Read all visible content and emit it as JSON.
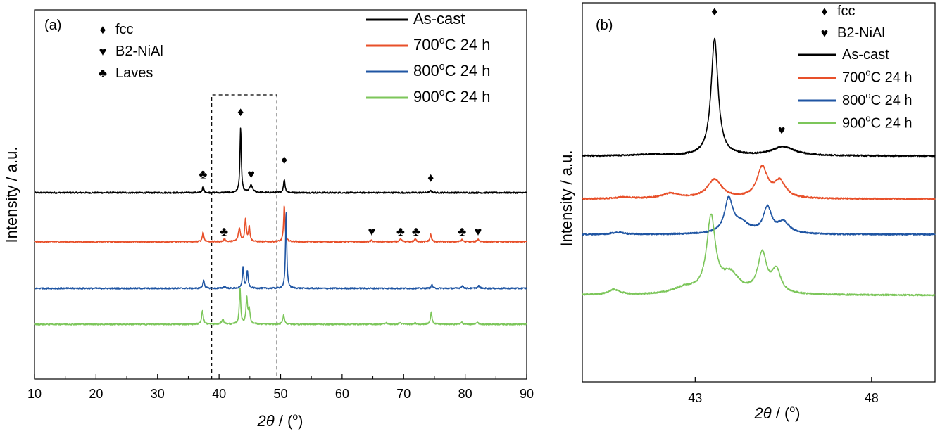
{
  "colors": {
    "As-cast": "#000000",
    "700oC 24 h": "#E8502A",
    "800oC 24 h": "#1F55A3",
    "900oC 24 h": "#7CC65A"
  },
  "symbols": {
    "fcc": "♦",
    "B2-NiAl": "♥",
    "Laves": "♣"
  },
  "chart_data": [
    {
      "panel_label": "(a)",
      "type": "line",
      "xlabel": "2θ / (°)",
      "xlabel_parts": {
        "italic": "2θ",
        "rest": " / (",
        "deg": "o",
        "close": ")"
      },
      "ylabel": "Intensity / a.u.",
      "xlim": [
        10,
        90
      ],
      "x_ticks": [
        10,
        20,
        30,
        40,
        50,
        60,
        70,
        80,
        90
      ],
      "y_ticks": "none (arbitrary units, curves vertically offset)",
      "phase_legend": [
        {
          "symbol": "♦",
          "label": "fcc"
        },
        {
          "symbol": "♥",
          "label": "B2-NiAl"
        },
        {
          "symbol": "♣",
          "label": "Laves"
        }
      ],
      "series_legend": [
        {
          "name": "As-cast",
          "base": "As-cast",
          "sup": "",
          "tail": ""
        },
        {
          "name": "700oC 24 h",
          "base": "700",
          "sup": "o",
          "tail": "C 24 h"
        },
        {
          "name": "800oC 24 h",
          "base": "800",
          "sup": "o",
          "tail": "C 24 h"
        },
        {
          "name": "900oC 24 h",
          "base": "900",
          "sup": "o",
          "tail": "C 24 h"
        }
      ],
      "zoom_box_x": [
        38.8,
        49.4
      ],
      "series": [
        {
          "name": "As-cast",
          "offset": 6.0,
          "peaks": [
            [
              37.4,
              0.25,
              0.15
            ],
            [
              43.5,
              2.7,
              0.13
            ],
            [
              45.2,
              0.3,
              0.3
            ],
            [
              50.6,
              0.55,
              0.15
            ],
            [
              74.4,
              0.08,
              0.2
            ]
          ]
        },
        {
          "name": "700oC 24 h",
          "offset": 3.95,
          "peaks": [
            [
              37.4,
              0.4,
              0.15
            ],
            [
              40.9,
              0.1,
              0.2
            ],
            [
              43.3,
              0.55,
              0.2
            ],
            [
              44.3,
              0.95,
              0.15
            ],
            [
              44.9,
              0.6,
              0.15
            ],
            [
              50.6,
              1.55,
              0.13
            ],
            [
              64.8,
              0.05,
              0.2
            ],
            [
              69.5,
              0.1,
              0.2
            ],
            [
              71.9,
              0.1,
              0.2
            ],
            [
              74.4,
              0.3,
              0.15
            ],
            [
              79.5,
              0.08,
              0.2
            ],
            [
              82.1,
              0.1,
              0.2
            ]
          ]
        },
        {
          "name": "800oC 24 h",
          "offset": 2.0,
          "peaks": [
            [
              37.5,
              0.35,
              0.15
            ],
            [
              40.9,
              0.08,
              0.2
            ],
            [
              43.9,
              0.9,
              0.13
            ],
            [
              44.6,
              0.7,
              0.15
            ],
            [
              50.9,
              3.2,
              0.12
            ],
            [
              74.6,
              0.15,
              0.15
            ],
            [
              79.5,
              0.1,
              0.2
            ],
            [
              82.2,
              0.1,
              0.2
            ]
          ]
        },
        {
          "name": "900oC 24 h",
          "offset": 0.5,
          "peaks": [
            [
              37.3,
              0.6,
              0.15
            ],
            [
              40.6,
              0.2,
              0.2
            ],
            [
              43.4,
              1.55,
              0.13
            ],
            [
              44.5,
              1.1,
              0.15
            ],
            [
              44.9,
              0.6,
              0.15
            ],
            [
              50.5,
              0.4,
              0.15
            ],
            [
              67.2,
              0.06,
              0.2
            ],
            [
              69.4,
              0.06,
              0.2
            ],
            [
              71.9,
              0.05,
              0.2
            ],
            [
              74.5,
              0.5,
              0.15
            ],
            [
              79.4,
              0.08,
              0.2
            ],
            [
              82.0,
              0.08,
              0.2
            ]
          ]
        }
      ],
      "annotations": [
        {
          "symbol": "♦",
          "x": 43.5,
          "level": 9.2
        },
        {
          "symbol": "♣",
          "x": 37.4,
          "level": 6.6
        },
        {
          "symbol": "♥",
          "x": 45.2,
          "level": 6.6
        },
        {
          "symbol": "♦",
          "x": 50.6,
          "level": 7.2
        },
        {
          "symbol": "♦",
          "x": 74.4,
          "level": 6.45
        },
        {
          "symbol": "♣",
          "x": 40.8,
          "level": 4.2
        },
        {
          "symbol": "♥",
          "x": 64.8,
          "level": 4.2
        },
        {
          "symbol": "♣",
          "x": 69.5,
          "level": 4.2
        },
        {
          "symbol": "♣",
          "x": 72.0,
          "level": 4.2
        },
        {
          "symbol": "♣",
          "x": 79.5,
          "level": 4.2
        },
        {
          "symbol": "♥",
          "x": 82.1,
          "level": 4.2
        }
      ]
    },
    {
      "panel_label": "(b)",
      "type": "line",
      "xlabel": "2θ / (°)",
      "xlabel_parts": {
        "italic": "2θ",
        "rest": " / (",
        "deg": "o",
        "close": ")"
      },
      "ylabel": "Intensity / a.u.",
      "xlim": [
        39.8,
        49.8
      ],
      "x_ticks": [
        43,
        48
      ],
      "phase_legend": [
        {
          "symbol": "♦",
          "label": "fcc"
        },
        {
          "symbol": "♥",
          "label": "B2-NiAl"
        }
      ],
      "series_legend": [
        {
          "name": "As-cast",
          "base": "As-cast",
          "sup": "",
          "tail": ""
        },
        {
          "name": "700oC 24 h",
          "base": "700",
          "sup": "o",
          "tail": "C 24 h"
        },
        {
          "name": "800oC 24 h",
          "base": "800",
          "sup": "o",
          "tail": "C 24 h"
        },
        {
          "name": "900oC 24 h",
          "base": "900",
          "sup": "o",
          "tail": "C 24 h"
        }
      ],
      "series": [
        {
          "name": "As-cast",
          "offset": 7.45,
          "peaks": [
            [
              43.55,
              4.6,
              0.12
            ],
            [
              45.5,
              0.35,
              0.4
            ],
            [
              41.8,
              0.05,
              0.5
            ]
          ]
        },
        {
          "name": "700oC 24 h",
          "offset": 5.75,
          "peaks": [
            [
              43.55,
              0.75,
              0.25
            ],
            [
              44.9,
              1.2,
              0.18
            ],
            [
              45.4,
              0.65,
              0.2
            ],
            [
              42.3,
              0.2,
              0.3
            ],
            [
              41.0,
              0.06,
              0.3
            ]
          ]
        },
        {
          "name": "800oC 24 h",
          "offset": 4.35,
          "peaks": [
            [
              43.95,
              1.3,
              0.14
            ],
            [
              44.3,
              0.4,
              0.3
            ],
            [
              45.05,
              1.0,
              0.14
            ],
            [
              45.5,
              0.45,
              0.2
            ],
            [
              40.8,
              0.08,
              0.2
            ]
          ]
        },
        {
          "name": "900oC 24 h",
          "offset": 1.95,
          "peaks": [
            [
              43.45,
              2.95,
              0.15
            ],
            [
              44.0,
              0.75,
              0.3
            ],
            [
              44.9,
              1.55,
              0.15
            ],
            [
              45.3,
              0.9,
              0.15
            ],
            [
              42.7,
              0.25,
              0.4
            ],
            [
              40.7,
              0.2,
              0.2
            ]
          ]
        }
      ],
      "annotations": [
        {
          "symbol": "♦",
          "x": 43.55,
          "level": 13.0
        },
        {
          "symbol": "♥",
          "x": 45.45,
          "level": 8.3
        }
      ]
    }
  ]
}
